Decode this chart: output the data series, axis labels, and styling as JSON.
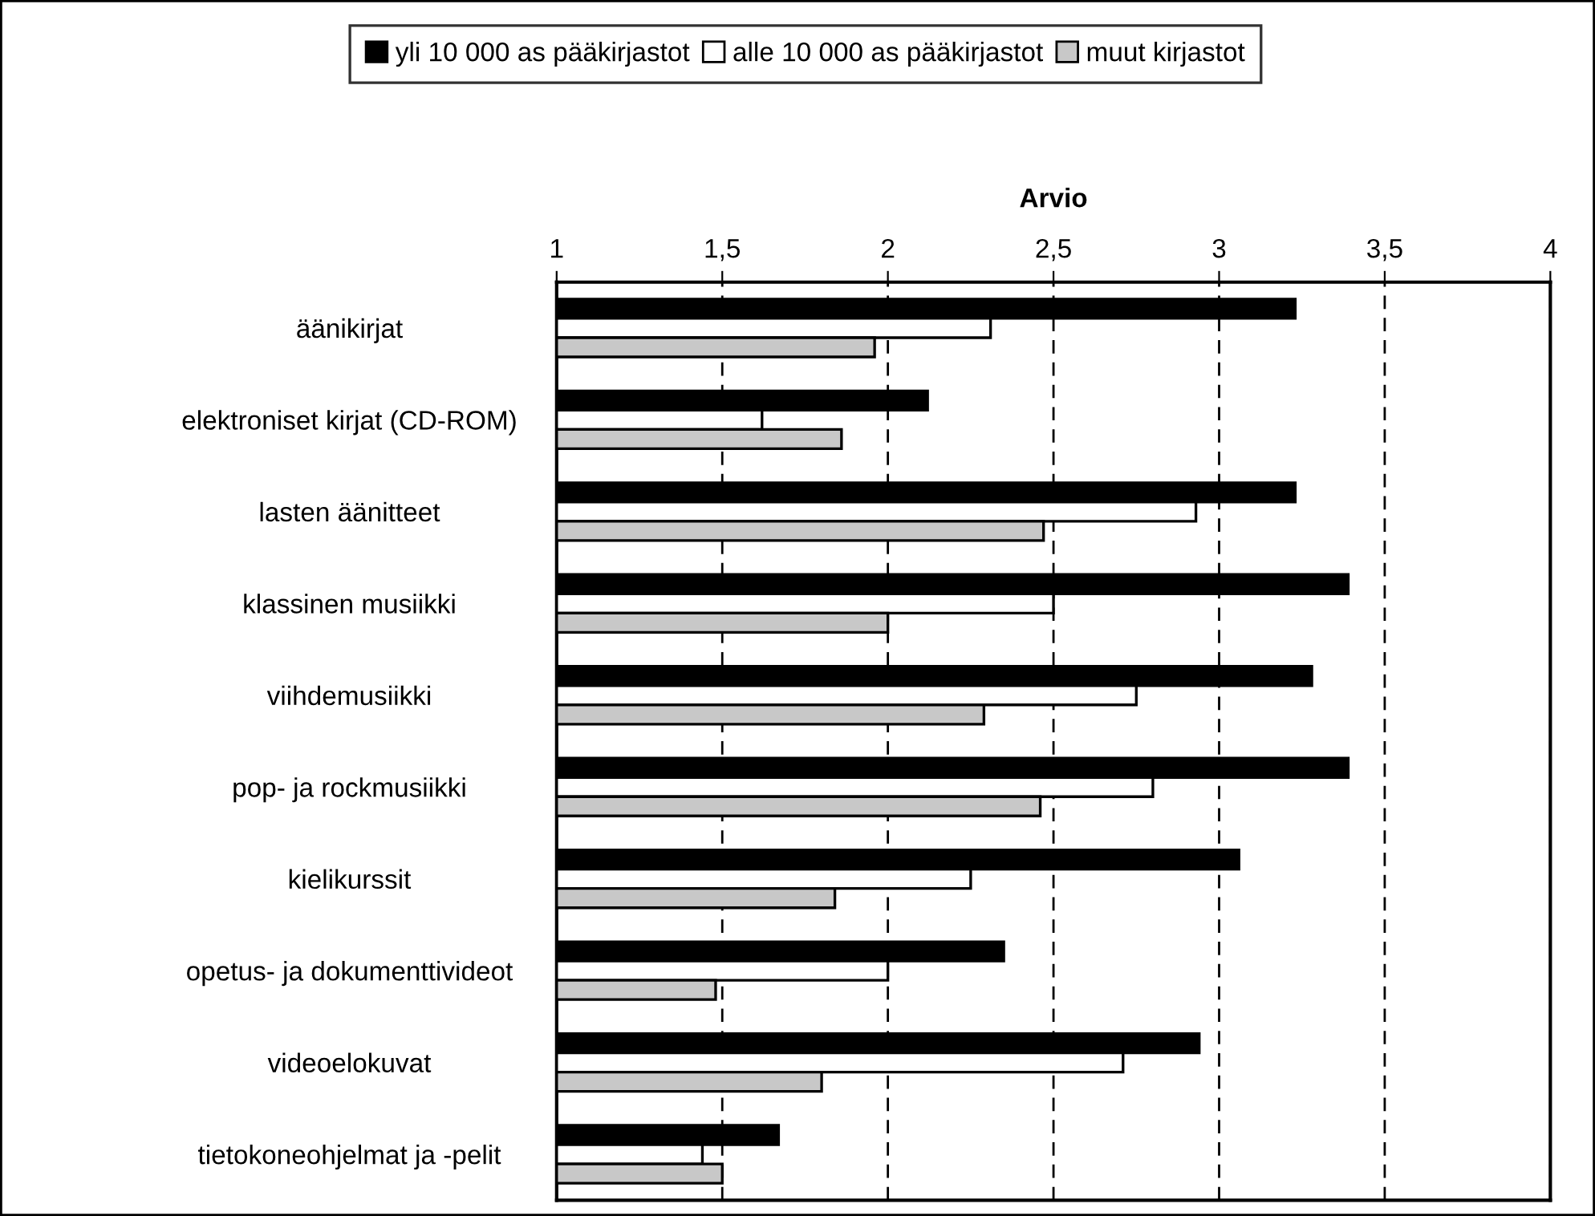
{
  "chart_data": {
    "type": "bar",
    "orientation": "horizontal",
    "xlabel": "Arvio",
    "categories": [
      "äänikirjat",
      "elektroniset kirjat (CD-ROM)",
      "lasten äänitteet",
      "klassinen musiikki",
      "viihdemusiikki",
      "pop- ja rockmusiikki",
      "kielikurssit",
      "opetus- ja dokumenttivideot",
      "videoelokuvat",
      "tietokoneohjelmat ja -pelit"
    ],
    "series": [
      {
        "name": "yli 10 000 as pääkirjastot",
        "color": "#000000",
        "values": [
          3.23,
          2.12,
          3.23,
          3.39,
          3.28,
          3.39,
          3.06,
          2.35,
          2.94,
          1.67
        ]
      },
      {
        "name": "alle 10 000 as pääkirjastot",
        "color": "#ffffff",
        "values": [
          2.31,
          1.62,
          2.93,
          2.5,
          2.75,
          2.8,
          2.25,
          2.0,
          2.71,
          1.44
        ]
      },
      {
        "name": "muut kirjastot",
        "color": "#c8c8c8",
        "values": [
          1.96,
          1.86,
          2.47,
          2.0,
          2.29,
          2.46,
          1.84,
          1.48,
          1.8,
          1.5
        ]
      }
    ],
    "xlim": [
      1,
      4
    ],
    "xticks": [
      1,
      {
        "value": 1.5,
        "label": "1,5"
      },
      2,
      {
        "value": 2.5,
        "label": "2,5"
      },
      3,
      {
        "value": 3.5,
        "label": "3,5"
      },
      4
    ],
    "grid": "x",
    "legend": "top"
  }
}
